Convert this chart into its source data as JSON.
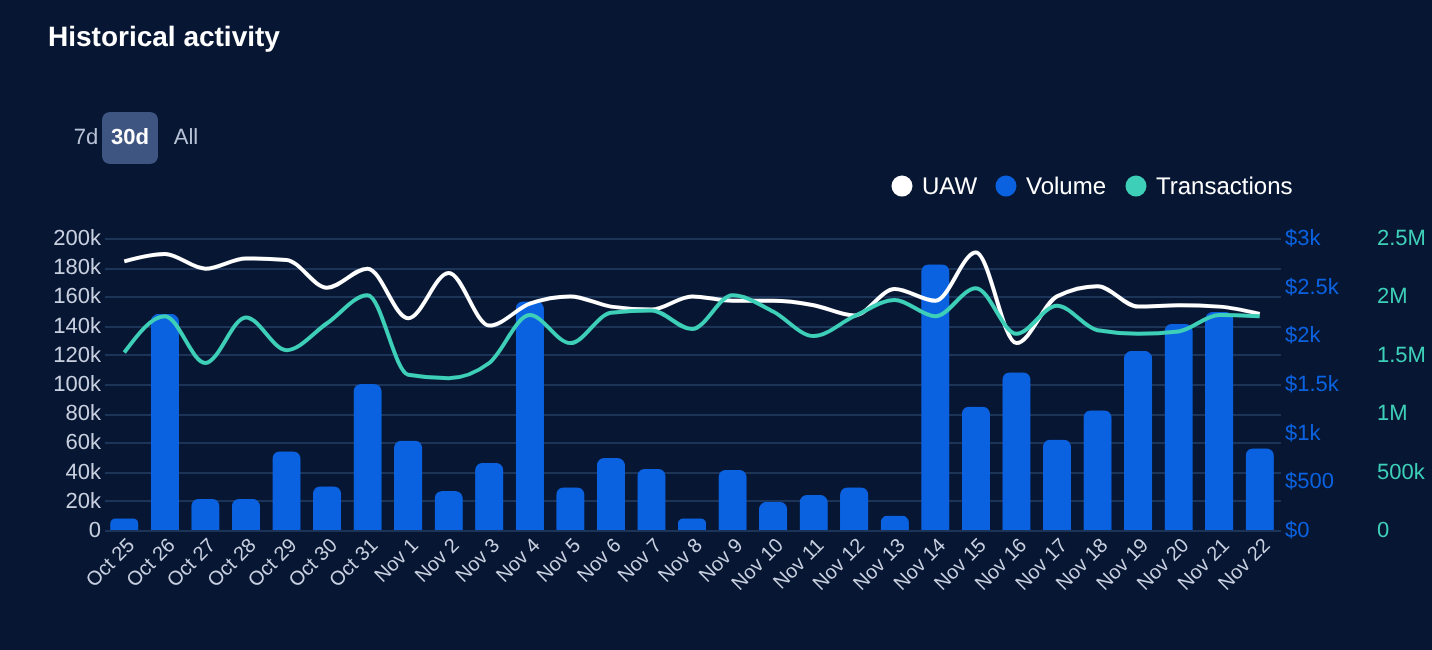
{
  "chart_data": {
    "type": "bar",
    "title": "Historical activity",
    "annotations": [
      "7d",
      "30d",
      "All"
    ],
    "categories": [
      "Oct 25",
      "Oct 26",
      "Oct 27",
      "Oct 28",
      "Oct 29",
      "Oct 30",
      "Oct 31",
      "Nov 1",
      "Nov 2",
      "Nov 3",
      "Nov 4",
      "Nov 5",
      "Nov 6",
      "Nov 7",
      "Nov 8",
      "Nov 9",
      "Nov 10",
      "Nov 11",
      "Nov 12",
      "Nov 13",
      "Nov 14",
      "Nov 15",
      "Nov 16",
      "Nov 17",
      "Nov 18",
      "Nov 19",
      "Nov 20",
      "Nov 21",
      "Nov 22"
    ],
    "series": [
      {
        "name": "UAW",
        "type": "line",
        "axis": "y",
        "color": "#ffffff",
        "values": [
          184000,
          189000,
          179000,
          186000,
          185000,
          166000,
          179000,
          145000,
          176000,
          140000,
          155000,
          160000,
          153000,
          151000,
          160000,
          157000,
          157000,
          154000,
          147000,
          165000,
          157000,
          190000,
          128000,
          160000,
          167000,
          153000,
          154000,
          153000,
          148000
        ]
      },
      {
        "name": "Volume",
        "axis": "y2",
        "color": "#0a62e0",
        "values": [
          120,
          2220,
          320,
          320,
          810,
          450,
          1500,
          920,
          400,
          690,
          2350,
          440,
          740,
          630,
          120,
          620,
          290,
          360,
          440,
          150,
          2730,
          1270,
          1620,
          930,
          1230,
          1840,
          2120,
          2240,
          840
        ]
      },
      {
        "name": "Transactions",
        "type": "line",
        "axis": "y3",
        "color": "#3ecfb8",
        "values": [
          1520000,
          1830000,
          1430000,
          1820000,
          1540000,
          1770000,
          2010000,
          1330000,
          1300000,
          1430000,
          1840000,
          1600000,
          1860000,
          1880000,
          1720000,
          2010000,
          1870000,
          1660000,
          1830000,
          1970000,
          1830000,
          2070000,
          1680000,
          1920000,
          1710000,
          1680000,
          1700000,
          1840000,
          1830000
        ]
      }
    ],
    "ylim": [
      0,
      200000
    ],
    "yticks": [
      {
        "value": 0,
        "label": "0"
      },
      {
        "value": 20000,
        "label": "20k"
      },
      {
        "value": 40000,
        "label": "40k"
      },
      {
        "value": 60000,
        "label": "60k"
      },
      {
        "value": 80000,
        "label": "80k"
      },
      {
        "value": 100000,
        "label": "100k"
      },
      {
        "value": 120000,
        "label": "120k"
      },
      {
        "value": 140000,
        "label": "140k"
      },
      {
        "value": 160000,
        "label": "160k"
      },
      {
        "value": 180000,
        "label": "180k"
      },
      {
        "value": 200000,
        "label": "200k"
      }
    ],
    "y2lim": [
      0,
      3000
    ],
    "y2ticks": [
      {
        "value": 0,
        "label": "$0"
      },
      {
        "value": 500,
        "label": "$500"
      },
      {
        "value": 1000,
        "label": "$1k"
      },
      {
        "value": 1500,
        "label": "$1.5k"
      },
      {
        "value": 2000,
        "label": "$2k"
      },
      {
        "value": 2500,
        "label": "$2.5k"
      },
      {
        "value": 3000,
        "label": "$3k"
      }
    ],
    "y3lim": [
      0,
      2500000
    ],
    "y3ticks": [
      0,
      {
        "value": 500000,
        "label": "500k"
      },
      {
        "value": 1000000,
        "label": "1M"
      },
      {
        "value": 1500000,
        "label": "1.5M"
      },
      {
        "value": 2000000,
        "label": "2M"
      },
      {
        "value": 2500000,
        "label": "2.5M"
      }
    ],
    "grid": "y",
    "legend": "top right"
  }
}
